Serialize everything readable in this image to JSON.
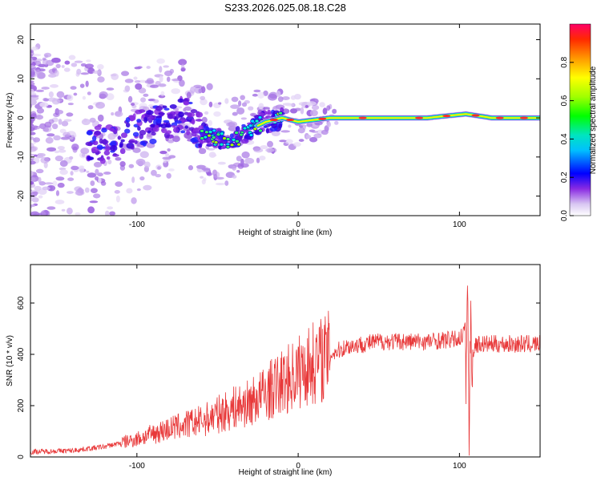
{
  "figure_title": "S233.2026.025.08.18.C28",
  "chart_data": [
    {
      "type": "heatmap",
      "xlabel": "Height of straight line (km)",
      "ylabel": "Frequency (Hz)",
      "xlim": [
        -166,
        150
      ],
      "ylim": [
        -25,
        24
      ],
      "xticks": [
        -100,
        0,
        100
      ],
      "xtick_labels": [
        "-100",
        "0",
        "100"
      ],
      "yticks": [
        20,
        10,
        0,
        -10,
        -20
      ],
      "ytick_labels": [
        "20",
        "10",
        "0",
        "-10",
        "-20"
      ],
      "ridge": {
        "x": [
          -130,
          -115,
          -100,
          -85,
          -70,
          -60,
          -50,
          -40,
          -30,
          -20,
          -10,
          0,
          20,
          50,
          80,
          104,
          120,
          150
        ],
        "freq": [
          -6,
          -7,
          -3,
          -1,
          1,
          -4,
          -5,
          -6,
          -3,
          -1,
          0,
          -1,
          0,
          0,
          0,
          1,
          0,
          0
        ]
      },
      "colorbar": {
        "label": "Normalized spectral amplitude",
        "ticks": [
          0.0,
          0.2,
          0.4,
          0.6,
          0.8
        ],
        "tick_labels": [
          "0.0",
          "0.2",
          "0.4",
          "0.6",
          "0.8"
        ],
        "range": [
          0,
          1
        ]
      }
    },
    {
      "type": "line",
      "xlabel": "Height of straight line (km)",
      "ylabel": "SNR (10 * v/v)",
      "xlim": [
        -166,
        150
      ],
      "ylim": [
        0,
        750
      ],
      "xticks": [
        -100,
        0,
        100
      ],
      "xtick_labels": [
        "-100",
        "0",
        "100"
      ],
      "yticks": [
        0,
        200,
        400,
        600
      ],
      "ytick_labels": [
        "0",
        "200",
        "400",
        "600"
      ],
      "line_color": "#e8393a",
      "envelope": {
        "x": [
          -166,
          -140,
          -120,
          -100,
          -80,
          -60,
          -40,
          -30,
          -20,
          -10,
          0,
          10,
          20,
          30,
          50,
          80,
          100,
          104,
          106,
          108,
          110,
          120,
          150
        ],
        "y": [
          20,
          25,
          40,
          70,
          110,
          140,
          190,
          210,
          250,
          290,
          330,
          370,
          400,
          430,
          450,
          450,
          460,
          500,
          440,
          400,
          440,
          440,
          440
        ]
      },
      "spike": {
        "x": [
          104,
          105,
          106,
          107,
          108
        ],
        "y": [
          260,
          700,
          100,
          600,
          300
        ]
      }
    }
  ]
}
